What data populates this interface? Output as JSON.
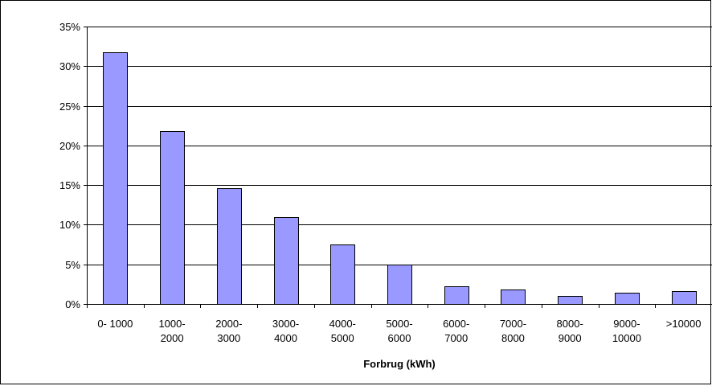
{
  "chart_data": {
    "type": "bar",
    "title": "",
    "xlabel": "Forbrug (kWh)",
    "ylabel": "",
    "categories": [
      [
        "0- 1000"
      ],
      [
        "1000-",
        "2000"
      ],
      [
        "2000-",
        "3000"
      ],
      [
        "3000-",
        "4000"
      ],
      [
        "4000-",
        "5000"
      ],
      [
        "5000-",
        "6000"
      ],
      [
        "6000-",
        "7000"
      ],
      [
        "7000-",
        "8000"
      ],
      [
        "8000-",
        "9000"
      ],
      [
        "9000-",
        "10000"
      ],
      [
        ">10000"
      ]
    ],
    "values": [
      31.8,
      21.8,
      14.6,
      11.0,
      7.5,
      5.0,
      2.2,
      1.8,
      1.0,
      1.4,
      1.6
    ],
    "ylim": [
      0,
      35
    ],
    "yticks": [
      0,
      5,
      10,
      15,
      20,
      25,
      30,
      35
    ],
    "ytick_labels": [
      "0%",
      "5%",
      "10%",
      "15%",
      "20%",
      "25%",
      "30%",
      "35%"
    ],
    "grid": "horizontal",
    "legend": "none",
    "colors": {
      "bar_fill": "#9999ff",
      "bar_stroke": "#000000",
      "gridline": "#000000",
      "background": "#ffffff"
    }
  }
}
